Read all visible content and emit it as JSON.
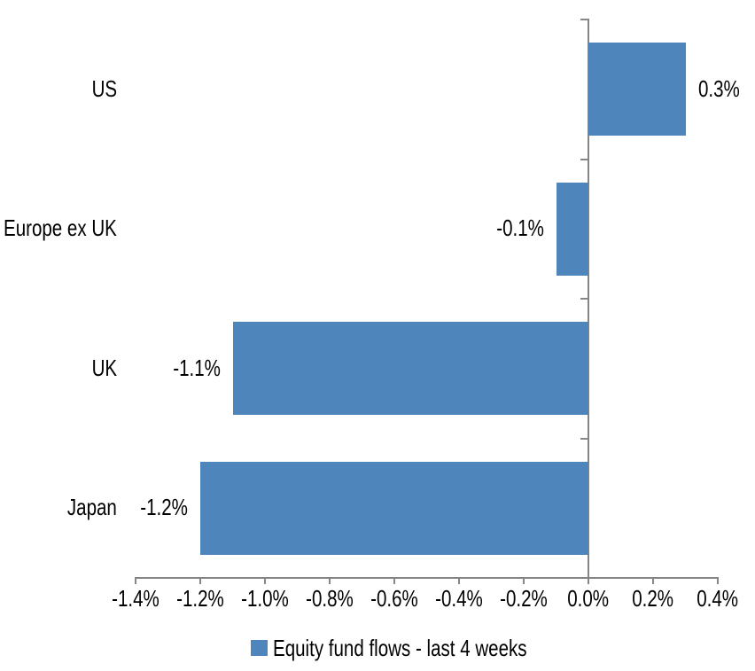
{
  "chart_data": {
    "type": "bar",
    "orientation": "horizontal",
    "title": "",
    "xlabel": "",
    "ylabel": "",
    "unit": "%",
    "categories": [
      "US",
      "Europe ex UK",
      "UK",
      "Japan"
    ],
    "series": [
      {
        "name": "Equity fund flows - last 4 weeks",
        "values": [
          0.3,
          -0.1,
          -1.1,
          -1.2
        ],
        "data_labels": [
          "0.3%",
          "-0.1%",
          "-1.1%",
          "-1.2%"
        ]
      }
    ],
    "xlim": [
      -1.4,
      0.4
    ],
    "x_tick_step": 0.2,
    "x_tick_labels": [
      "-1.4%",
      "-1.2%",
      "-1.0%",
      "-0.8%",
      "-0.6%",
      "-0.4%",
      "-0.2%",
      "0.0%",
      "0.2%",
      "0.4%"
    ],
    "grid": false,
    "legend_position": "bottom",
    "colors": {
      "bar": "#4E86BC",
      "axis": "#868686",
      "text": "#000000",
      "background": "#FFFFFF"
    }
  }
}
